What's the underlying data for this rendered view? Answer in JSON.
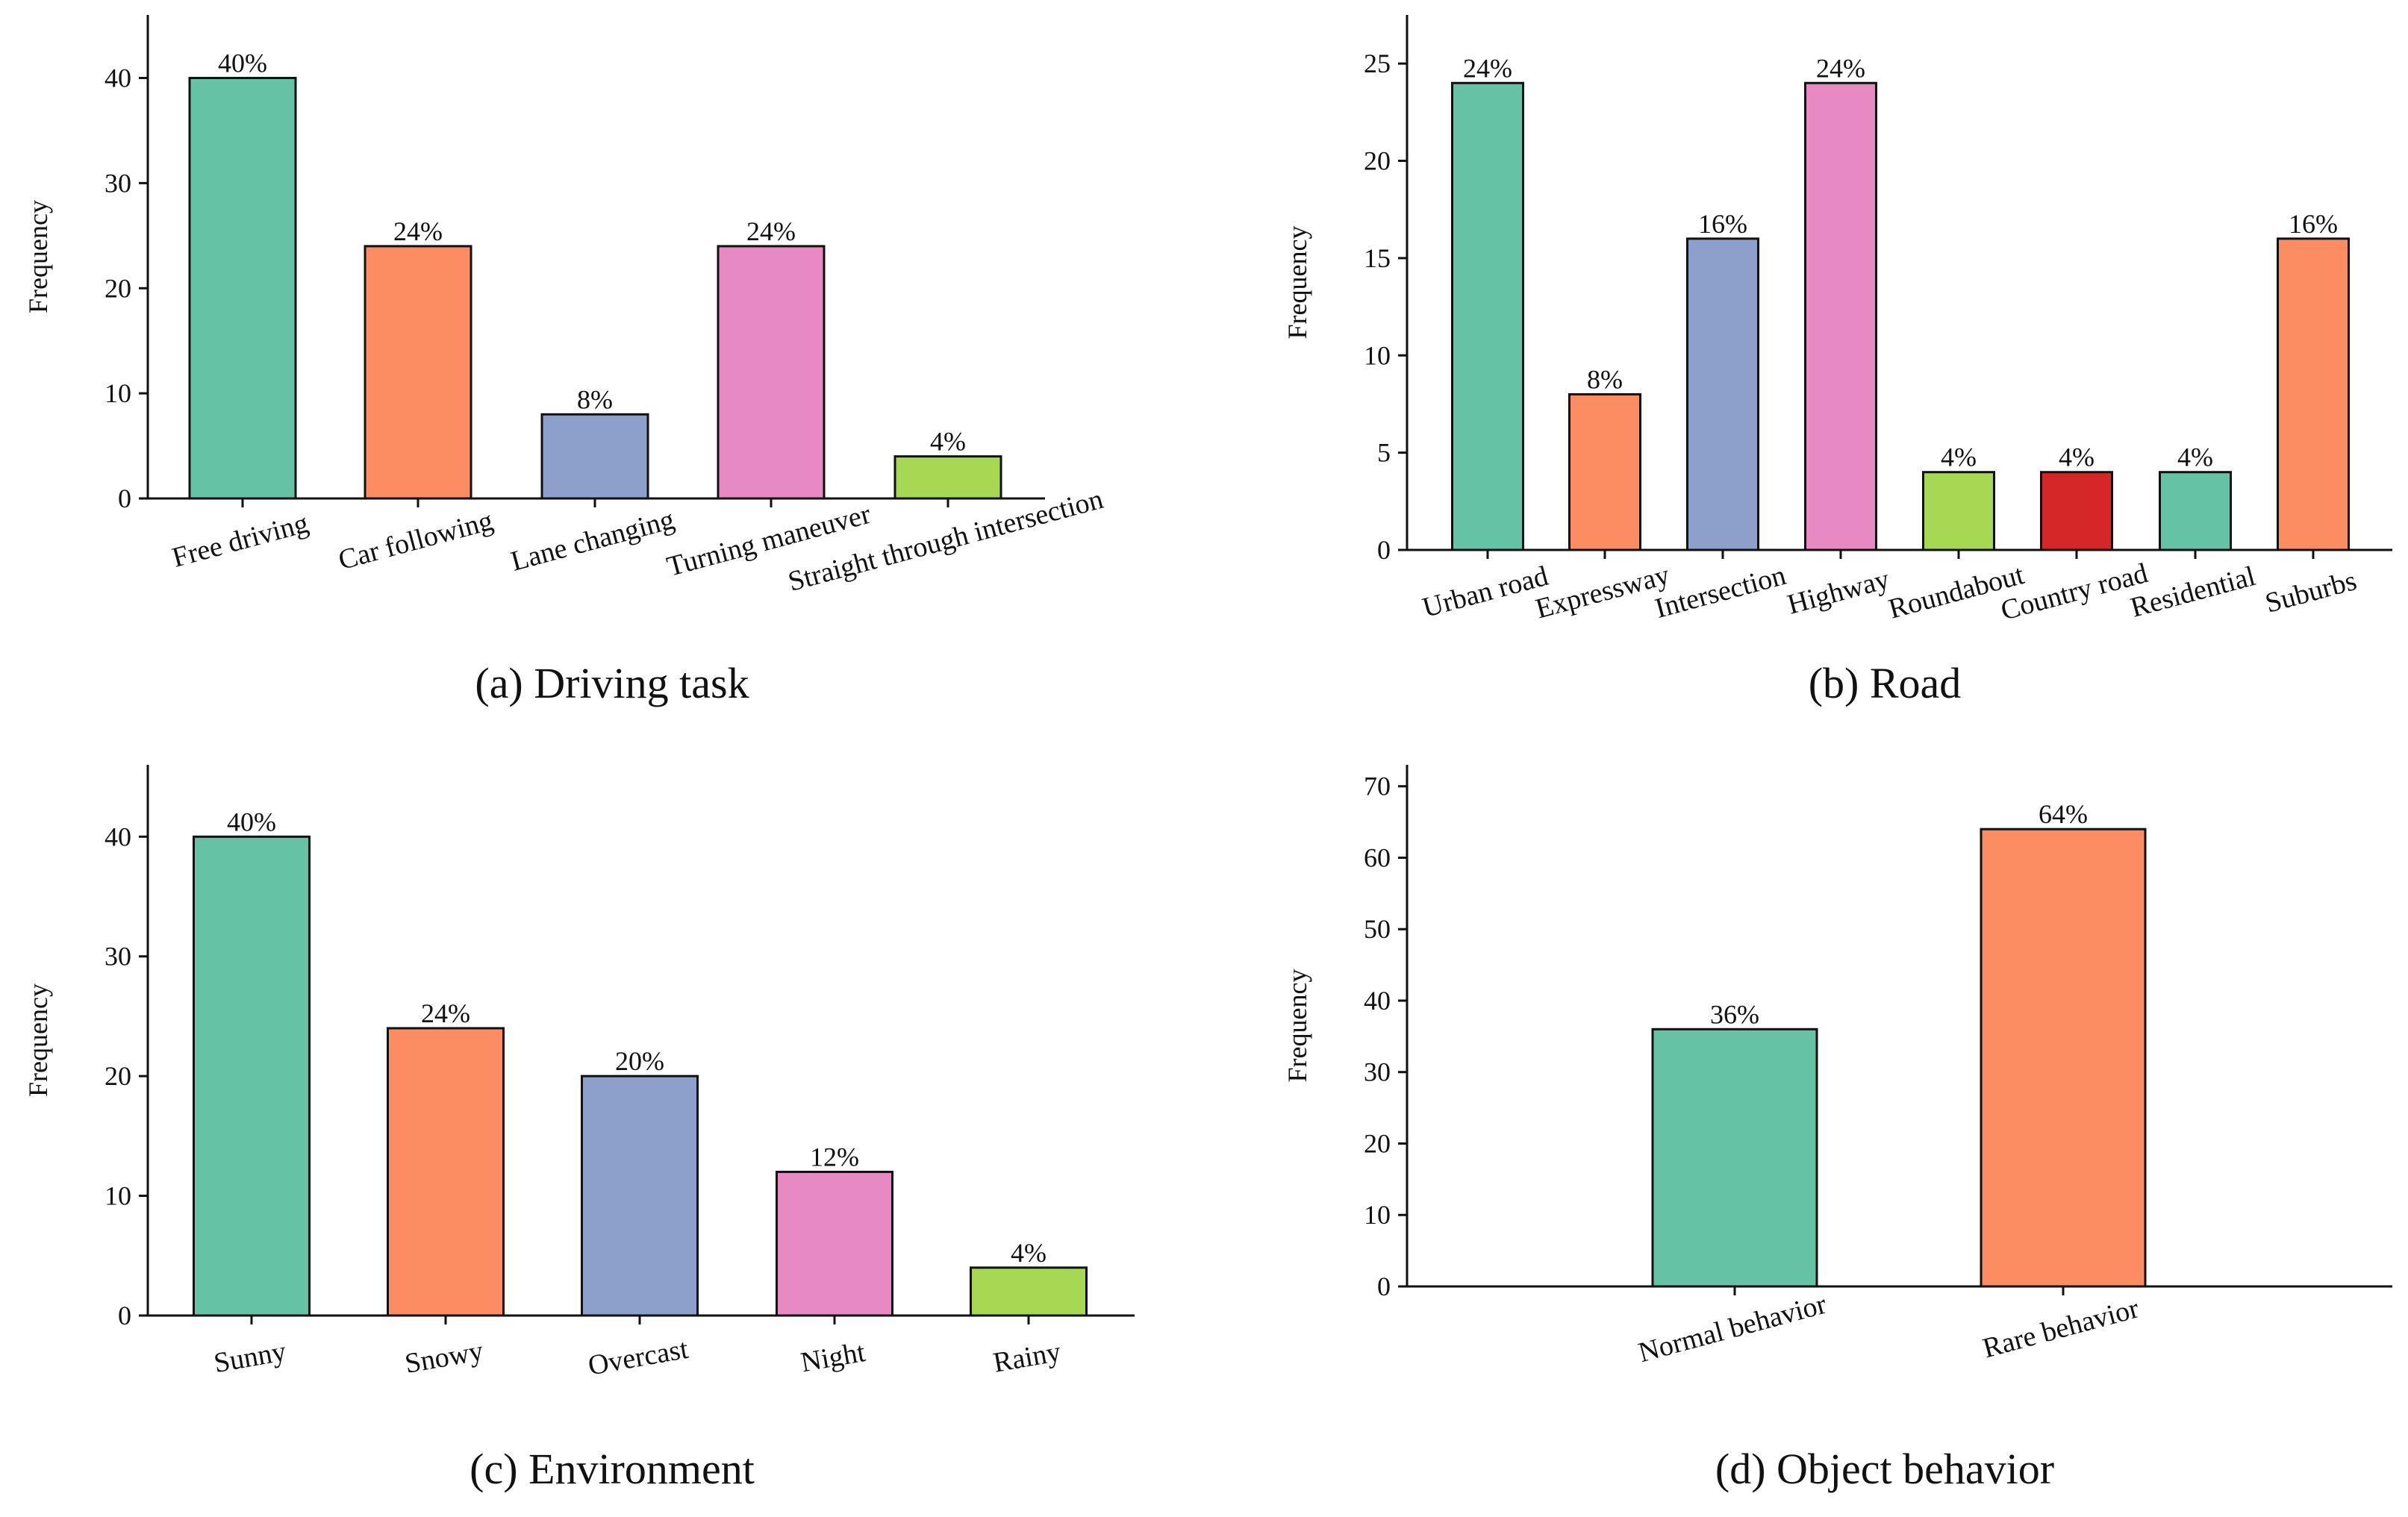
{
  "chart_data": [
    {
      "id": "a",
      "type": "bar",
      "caption": "(a) Driving task",
      "ylabel": "Frequency",
      "xlabel": "",
      "ylim": [
        0,
        46
      ],
      "yticks": [
        0,
        10,
        20,
        30,
        40
      ],
      "categories": [
        "Free driving",
        "Car following",
        "Lane changing",
        "Turning maneuver",
        "Straight through intersection"
      ],
      "values": [
        40,
        24,
        8,
        24,
        4
      ],
      "labels": [
        "40%",
        "24%",
        "8%",
        "24%",
        "4%"
      ],
      "colors": [
        "#66c2a5",
        "#fc8d62",
        "#8da0cb",
        "#e78ac3",
        "#a6d854"
      ],
      "label_rotation": -15
    },
    {
      "id": "b",
      "type": "bar",
      "caption": "(b) Road",
      "ylabel": "Frequency",
      "xlabel": "",
      "ylim": [
        0,
        27.5
      ],
      "yticks": [
        0,
        5,
        10,
        15,
        20,
        25
      ],
      "categories": [
        "Urban road",
        "Expressway",
        "Intersection",
        "Highway",
        "Roundabout",
        "Country road",
        "Residential",
        "Suburbs"
      ],
      "values": [
        24,
        8,
        16,
        24,
        4,
        4,
        4,
        16
      ],
      "labels": [
        "24%",
        "8%",
        "16%",
        "24%",
        "4%",
        "4%",
        "4%",
        "16%"
      ],
      "colors": [
        "#66c2a5",
        "#fc8d62",
        "#8da0cb",
        "#e78ac3",
        "#a6d854",
        "#d62728",
        "#66c2a5",
        "#fc8d62"
      ],
      "label_rotation": -15
    },
    {
      "id": "c",
      "type": "bar",
      "caption": "(c) Environment",
      "ylabel": "Frequency",
      "xlabel": "",
      "ylim": [
        0,
        46
      ],
      "yticks": [
        0,
        10,
        20,
        30,
        40
      ],
      "categories": [
        "Sunny",
        "Snowy",
        "Overcast",
        "Night",
        "Rainy"
      ],
      "values": [
        40,
        24,
        20,
        12,
        4
      ],
      "labels": [
        "40%",
        "24%",
        "20%",
        "12%",
        "4%"
      ],
      "colors": [
        "#66c2a5",
        "#fc8d62",
        "#8da0cb",
        "#e78ac3",
        "#a6d854"
      ],
      "label_rotation": -10
    },
    {
      "id": "d",
      "type": "bar",
      "caption": "(d) Object behavior",
      "ylabel": "Frequency",
      "xlabel": "",
      "ylim": [
        0,
        73
      ],
      "yticks": [
        0,
        10,
        20,
        30,
        40,
        50,
        60,
        70
      ],
      "categories": [
        "Normal behavior",
        "Rare behavior"
      ],
      "values": [
        36,
        64
      ],
      "labels": [
        "36%",
        "64%"
      ],
      "colors": [
        "#66c2a5",
        "#fc8d62"
      ],
      "label_rotation": -15
    }
  ]
}
